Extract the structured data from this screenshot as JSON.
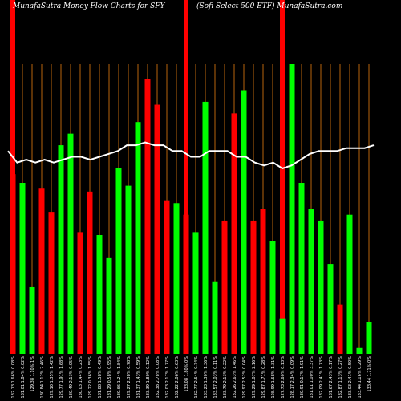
{
  "header": {
    "left": "MunafaSutra  Money Flow  Charts for SFY",
    "right": "(Sofi   Select 500   ETF) MunafaSutra.com"
  },
  "colors": {
    "background": "#000000",
    "up": "#00ff00",
    "down": "#ff0000",
    "divider": "#b8650b",
    "line": "#ffffff"
  },
  "chart_data": {
    "type": "bar",
    "title": "MunafaSutra  Money Flow  Charts for SFY",
    "subtitle": "(Sofi   Select 500   ETF) MunafaSutra.com",
    "ylim": [
      0,
      100
    ],
    "bars": [
      {
        "label": "132.13 1.66% 0.08%",
        "value": 62,
        "color": "down",
        "highlight": true
      },
      {
        "label": "131.01 1.84% 0.02%",
        "value": 59,
        "color": "up",
        "highlight": false
      },
      {
        "label": "129.38 1.10% 1%",
        "value": 23,
        "color": "up",
        "highlight": false
      },
      {
        "label": "130.84 1.12% 2.46%",
        "value": 57,
        "color": "down",
        "highlight": false
      },
      {
        "label": "129.10 1.35% 1.42%",
        "value": 49,
        "color": "down",
        "highlight": false
      },
      {
        "label": "129.77 1.91% 1.68%",
        "value": 72,
        "color": "up",
        "highlight": false
      },
      {
        "label": "130.49 2.13% 0.05%",
        "value": 76,
        "color": "up",
        "highlight": false
      },
      {
        "label": "130.03 1.44% 0.23%",
        "value": 42,
        "color": "down",
        "highlight": false
      },
      {
        "label": "129.22 0.36% 1.55%",
        "value": 56,
        "color": "down",
        "highlight": false
      },
      {
        "label": "131.88 1.58% 0.49%",
        "value": 41,
        "color": "up",
        "highlight": false
      },
      {
        "label": "131.29 0.58% 0.95%",
        "value": 33,
        "color": "up",
        "highlight": false
      },
      {
        "label": "130.66 1.24% 1.84%",
        "value": 64,
        "color": "up",
        "highlight": false
      },
      {
        "label": "129.27 2.38% 0.78%",
        "value": 58,
        "color": "up",
        "highlight": false
      },
      {
        "label": "131.37 1.43% 0.59%",
        "value": 80,
        "color": "up",
        "highlight": false
      },
      {
        "label": "133.39 1.80% 0.12%",
        "value": 95,
        "color": "down",
        "highlight": false
      },
      {
        "label": "132.38 2.78% 0.08%",
        "value": 86,
        "color": "down",
        "highlight": false
      },
      {
        "label": "132.03 2.17% 1.77%",
        "value": 53,
        "color": "down",
        "highlight": false
      },
      {
        "label": "132.22 2.06% 0.63%",
        "value": 52,
        "color": "up",
        "highlight": false
      },
      {
        "label": "133.08 1.80% 0%",
        "value": 48,
        "color": "down",
        "highlight": true
      },
      {
        "label": "132.77 2.64% 0.74%",
        "value": 42,
        "color": "up",
        "highlight": false
      },
      {
        "label": "133.23 1.30% 1.36%",
        "value": 87,
        "color": "up",
        "highlight": false
      },
      {
        "label": "133.57 2.03% 0.11%",
        "value": 25,
        "color": "up",
        "highlight": false
      },
      {
        "label": "133.79 2.13% 0.22%",
        "value": 46,
        "color": "down",
        "highlight": false
      },
      {
        "label": "132.26 2.63% 1.46%",
        "value": 83,
        "color": "down",
        "highlight": false
      },
      {
        "label": "129.97 2.52% 0.04%",
        "value": 91,
        "color": "up",
        "highlight": false
      },
      {
        "label": "129.29 1.07% 2.16%",
        "value": 46,
        "color": "down",
        "highlight": false
      },
      {
        "label": "129.87 1.71% 0.28%",
        "value": 50,
        "color": "down",
        "highlight": false
      },
      {
        "label": "128.99 1.68% 1.31%",
        "value": 39,
        "color": "up",
        "highlight": false
      },
      {
        "label": "127.73 2.60% 0.13%",
        "value": 12,
        "color": "up",
        "highlight": true
      },
      {
        "label": "128.17 2.34% 0.09%",
        "value": 100,
        "color": "up",
        "highlight": false
      },
      {
        "label": "130.91 0.17% 1.91%",
        "value": 59,
        "color": "up",
        "highlight": false
      },
      {
        "label": "131.01 1.00% 3.37%",
        "value": 50,
        "color": "up",
        "highlight": false
      },
      {
        "label": "132.09 2.41% 1.73%",
        "value": 46,
        "color": "up",
        "highlight": false
      },
      {
        "label": "131.67 2.43% 0.17%",
        "value": 31,
        "color": "up",
        "highlight": false
      },
      {
        "label": "132.87 1.13% 0.27%",
        "value": 17,
        "color": "down",
        "highlight": false
      },
      {
        "label": "133.03 2.41% 0.50%",
        "value": 48,
        "color": "up",
        "highlight": false
      },
      {
        "label": "133.44 1.16% 0.29%",
        "value": 2,
        "color": "up",
        "highlight": false
      },
      {
        "label": "133.44 1.71% 0%",
        "value": 11,
        "color": "up",
        "highlight": false
      }
    ],
    "line": [
      70,
      66,
      67,
      66,
      67,
      66,
      67,
      68,
      68,
      67,
      68,
      69,
      70,
      72,
      72,
      73,
      72,
      72,
      70,
      70,
      68,
      68,
      70,
      70,
      70,
      68,
      68,
      66,
      65,
      66,
      64,
      65,
      67,
      69,
      70,
      70,
      70,
      71,
      71,
      71,
      72
    ]
  }
}
